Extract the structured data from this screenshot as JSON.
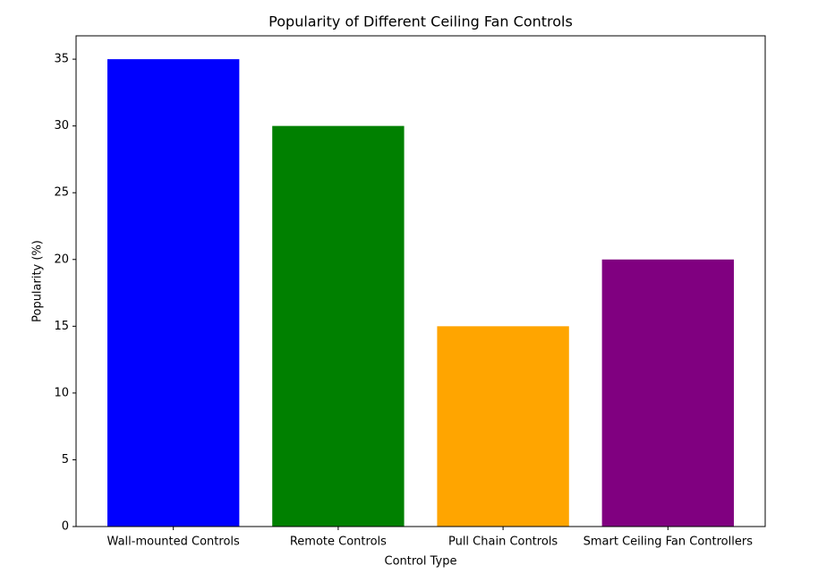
{
  "chart_data": {
    "type": "bar",
    "title": "Popularity of Different Ceiling Fan Controls",
    "x_label": "Control Type",
    "y_label": "Popularity (%)",
    "categories": [
      "Wall-mounted Controls",
      "Remote Controls",
      "Pull Chain Controls",
      "Smart Ceiling Fan Controllers"
    ],
    "values": [
      35,
      30,
      15,
      20
    ],
    "colors": [
      "#0000ff",
      "#008000",
      "#ffa500",
      "#800080"
    ],
    "ylim": [
      0,
      36.75
    ],
    "yticks": [
      0,
      5,
      10,
      15,
      20,
      25,
      30,
      35
    ],
    "grid": false
  }
}
